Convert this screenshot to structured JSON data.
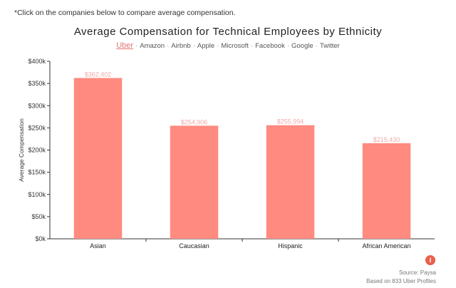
{
  "instruction": "*Click on the companies below to compare average compensation.",
  "companies": {
    "items": [
      "Uber",
      "Amazon",
      "Airbnb",
      "Apple",
      "Microsoft",
      "Facebook",
      "Google",
      "Twitter"
    ],
    "selected": "Uber",
    "separator": "·"
  },
  "footer": {
    "logo_letter": "I",
    "source": "Source: Paysa",
    "based_on": "Based on 833 Uber Profiles"
  },
  "colors": {
    "bar": "#ff8a80",
    "accent": "#e57373",
    "data_label": "#f3a8a8"
  },
  "chart_data": {
    "type": "bar",
    "title": "Average Compensation for Technical Employees by Ethnicity",
    "xlabel": "",
    "ylabel": "Average Compensation",
    "categories": [
      "Asian",
      "Caucasian",
      "Hispanic",
      "African American"
    ],
    "values": [
      362402,
      254906,
      255994,
      215430
    ],
    "data_labels": [
      "$362,402",
      "$254,906",
      "$255,994",
      "$215,430"
    ],
    "ylim": [
      0,
      400000
    ],
    "yticks": [
      0,
      50000,
      100000,
      150000,
      200000,
      250000,
      300000,
      350000,
      400000
    ],
    "ytick_labels": [
      "$0k",
      "$50k",
      "$100k",
      "$150k",
      "$200k",
      "$250k",
      "$300k",
      "$350k",
      "$400k"
    ],
    "grid": false
  }
}
